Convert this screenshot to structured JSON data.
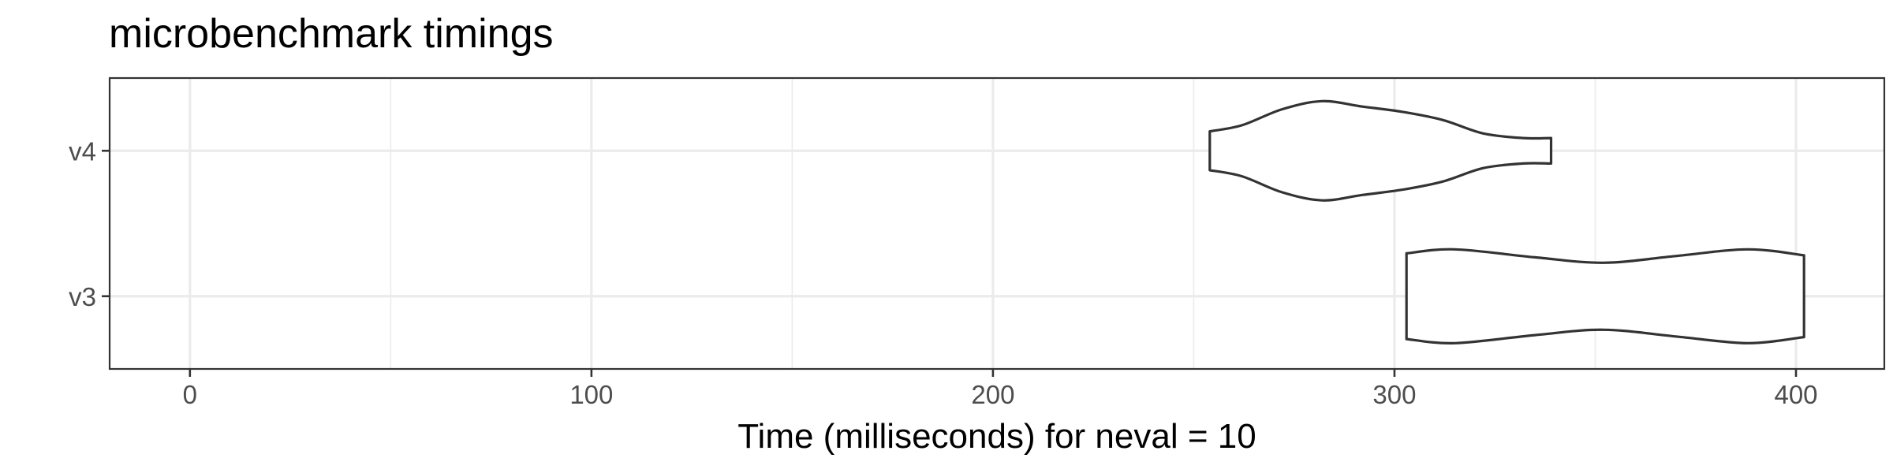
{
  "chart_data": {
    "type": "violin",
    "title": "microbenchmark timings",
    "xlabel": "Time (milliseconds) for neval = 10",
    "ylabel": "",
    "orientation": "horizontal",
    "xlim": [
      -20,
      422
    ],
    "x_ticks": [
      0,
      100,
      200,
      300,
      400
    ],
    "x_minor_ticks": [
      50,
      150,
      250,
      350
    ],
    "categories": [
      "v4",
      "v3"
    ],
    "grid": true,
    "series": [
      {
        "name": "v4",
        "min": 254,
        "max": 339,
        "density": [
          [
            254,
            0.29
          ],
          [
            262,
            0.38
          ],
          [
            272,
            0.62
          ],
          [
            282,
            0.74
          ],
          [
            292,
            0.66
          ],
          [
            302,
            0.58
          ],
          [
            312,
            0.46
          ],
          [
            322,
            0.26
          ],
          [
            332,
            0.19
          ],
          [
            339,
            0.19
          ]
        ]
      },
      {
        "name": "v3",
        "min": 303,
        "max": 402,
        "density": [
          [
            303,
            0.64
          ],
          [
            315,
            0.7
          ],
          [
            335,
            0.58
          ],
          [
            352,
            0.5
          ],
          [
            370,
            0.6
          ],
          [
            388,
            0.7
          ],
          [
            402,
            0.61
          ]
        ]
      }
    ],
    "colors": {
      "fill": "#ffffff",
      "stroke": "#333333",
      "grid": "#ebebeb"
    }
  }
}
